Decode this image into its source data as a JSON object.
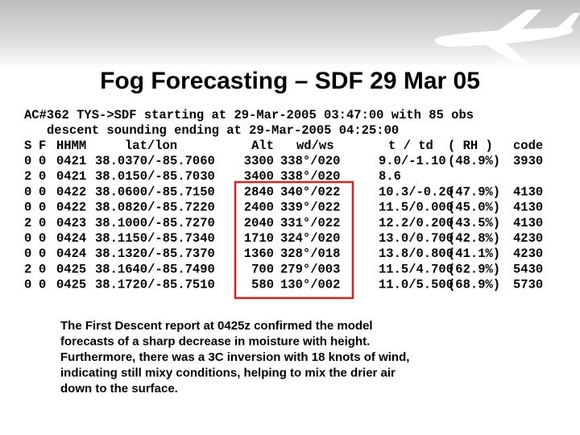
{
  "title": "Fog Forecasting – SDF 29 Mar 05",
  "intro": [
    "AC#362 TYS->SDF starting at 29-Mar-2005 03:47:00 with 85 obs",
    "descent sounding ending at 29-Mar-2005 04:25:00"
  ],
  "table": {
    "header": [
      "S",
      "F",
      "HHMM",
      "lat/lon",
      "Alt",
      "wd/ws",
      "t   / td",
      "( RH )",
      "code"
    ],
    "rows": [
      [
        "0",
        "0",
        "0421",
        "38.0370/-85.7060",
        "3300",
        "338°/020",
        "9.0/-1.10",
        "(48.9%)",
        "3930"
      ],
      [
        "2",
        "0",
        "0421",
        "38.0150/-85.7030",
        "3400",
        "338°/020",
        "8.6"
      ],
      [
        "0",
        "0",
        "0422",
        "38.0600/-85.7150",
        "2840",
        "340°/022",
        "10.3/-0.20",
        "(47.9%)",
        "4130"
      ],
      [
        "0",
        "0",
        "0422",
        "38.0820/-85.7220",
        "2400",
        "339°/022",
        "11.5/0.000",
        "(45.0%)",
        "4130"
      ],
      [
        "2",
        "0",
        "0423",
        "38.1000/-85.7270",
        "2040",
        "331°/022",
        "12.2/0.200",
        "(43.5%)",
        "4130"
      ],
      [
        "0",
        "0",
        "0424",
        "38.1150/-85.7340",
        "1710",
        "324°/020",
        "13.0/0.700",
        "(42.8%)",
        "4230"
      ],
      [
        "0",
        "0",
        "0424",
        "38.1320/-85.7370",
        "1360",
        "328°/018",
        "13.8/0.800",
        "(41.1%)",
        "4230"
      ],
      [
        "2",
        "0",
        "0425",
        "38.1640/-85.7490",
        "700",
        "279°/003",
        "11.5/4.700",
        "(62.9%)",
        "5430"
      ],
      [
        "0",
        "0",
        "0425",
        "38.1720/-85.7510",
        "580",
        "130°/002",
        "11.0/5.500",
        "(68.9%)",
        "5730"
      ]
    ]
  },
  "paragraph": [
    "The First Descent report at 0425z confirmed the model",
    "forecasts of a sharp decrease in moisture with height.",
    "Furthermore, there was a 3C inversion with 18 knots of wind,",
    "indicating still mixy conditions, helping to mix the drier air",
    "down to the surface."
  ]
}
